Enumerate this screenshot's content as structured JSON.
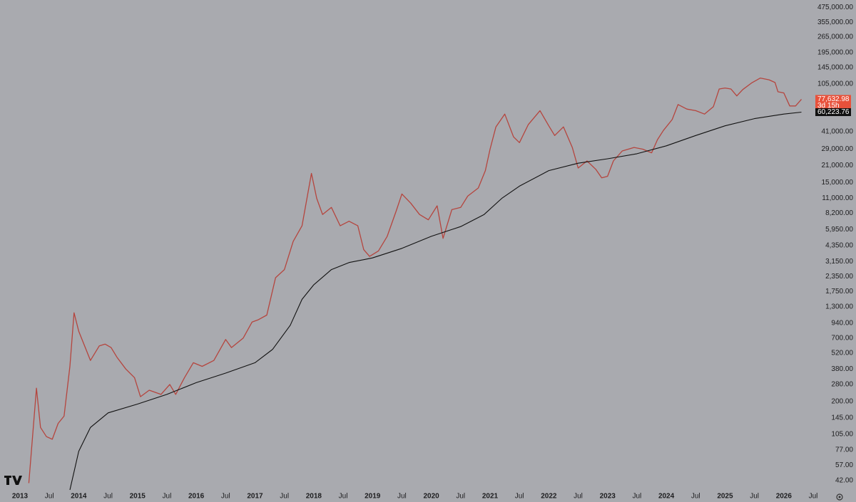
{
  "chart_data": {
    "type": "line",
    "log_y": true,
    "grid": false,
    "xlim": [
      2012.66,
      2026.5
    ],
    "xticks": [
      2013,
      {
        "value": 2013.5,
        "label": "Jul"
      },
      2014,
      {
        "value": 2014.5,
        "label": "Jul"
      },
      2015,
      {
        "value": 2015.5,
        "label": "Jul"
      },
      2016,
      {
        "value": 2016.5,
        "label": "Jul"
      },
      2017,
      {
        "value": 2017.5,
        "label": "Jul"
      },
      2018,
      {
        "value": 2018.5,
        "label": "Jul"
      },
      2019,
      {
        "value": 2019.5,
        "label": "Jul"
      },
      2020,
      {
        "value": 2020.5,
        "label": "Jul"
      },
      2021,
      {
        "value": 2021.5,
        "label": "Jul"
      },
      2022,
      {
        "value": 2022.5,
        "label": "Jul"
      },
      2023,
      {
        "value": 2023.5,
        "label": "Jul"
      },
      2024,
      {
        "value": 2024.5,
        "label": "Jul"
      },
      2025,
      {
        "value": 2025.5,
        "label": "Jul"
      },
      2026,
      {
        "value": 2026.5,
        "label": "Jul"
      }
    ],
    "ylim": [
      35,
      550000
    ],
    "yticks": [
      {
        "value": 475000,
        "label": "475,000.00"
      },
      {
        "value": 355000,
        "label": "355,000.00"
      },
      {
        "value": 265000,
        "label": "265,000.00"
      },
      {
        "value": 195000,
        "label": "195,000.00"
      },
      {
        "value": 145000,
        "label": "145,000.00"
      },
      {
        "value": 105000,
        "label": "105,000.00"
      },
      {
        "value": 41000,
        "label": "41,000.00"
      },
      {
        "value": 29000,
        "label": "29,000.00"
      },
      {
        "value": 21000,
        "label": "21,000.00"
      },
      {
        "value": 15000,
        "label": "15,000.00"
      },
      {
        "value": 11000,
        "label": "11,000.00"
      },
      {
        "value": 8200,
        "label": "8,200.00"
      },
      {
        "value": 5950,
        "label": "5,950.00"
      },
      {
        "value": 4350,
        "label": "4,350.00"
      },
      {
        "value": 3150,
        "label": "3,150.00"
      },
      {
        "value": 2350,
        "label": "2,350.00"
      },
      {
        "value": 1750,
        "label": "1,750.00"
      },
      {
        "value": 1300,
        "label": "1,300.00"
      },
      {
        "value": 940,
        "label": "940.00"
      },
      {
        "value": 700,
        "label": "700.00"
      },
      {
        "value": 520,
        "label": "520.00"
      },
      {
        "value": 380,
        "label": "380.00"
      },
      {
        "value": 280,
        "label": "280.00"
      },
      {
        "value": 200,
        "label": "200.00"
      },
      {
        "value": 145,
        "label": "145.00"
      },
      {
        "value": 105,
        "label": "105.00"
      },
      {
        "value": 77,
        "label": "77.00"
      },
      {
        "value": 57,
        "label": "57.00"
      },
      {
        "value": 42,
        "label": "42.00"
      }
    ],
    "series": [
      {
        "color": "#b5453e",
        "x": [
          2013.15,
          2013.28,
          2013.35,
          2013.45,
          2013.55,
          2013.65,
          2013.75,
          2013.85,
          2013.92,
          2014.0,
          2014.1,
          2014.2,
          2014.35,
          2014.45,
          2014.55,
          2014.65,
          2014.8,
          2014.95,
          2015.05,
          2015.2,
          2015.4,
          2015.55,
          2015.65,
          2015.8,
          2015.95,
          2016.1,
          2016.3,
          2016.5,
          2016.6,
          2016.8,
          2016.95,
          2017.05,
          2017.2,
          2017.35,
          2017.5,
          2017.65,
          2017.8,
          2017.96,
          2018.05,
          2018.15,
          2018.3,
          2018.45,
          2018.6,
          2018.75,
          2018.85,
          2018.95,
          2019.1,
          2019.25,
          2019.4,
          2019.5,
          2019.65,
          2019.8,
          2019.95,
          2020.1,
          2020.2,
          2020.35,
          2020.5,
          2020.62,
          2020.8,
          2020.92,
          2021.0,
          2021.1,
          2021.25,
          2021.4,
          2021.5,
          2021.65,
          2021.85,
          2022.0,
          2022.1,
          2022.25,
          2022.4,
          2022.5,
          2022.65,
          2022.8,
          2022.9,
          2023.0,
          2023.1,
          2023.25,
          2023.45,
          2023.6,
          2023.75,
          2023.85,
          2023.95,
          2024.1,
          2024.2,
          2024.35,
          2024.5,
          2024.65,
          2024.8,
          2024.9,
          2025.0,
          2025.1,
          2025.2,
          2025.3,
          2025.45,
          2025.6,
          2025.75,
          2025.85,
          2025.9,
          2026.0,
          2026.1,
          2026.2,
          2026.3
        ],
        "values": [
          40,
          260,
          120,
          100,
          95,
          130,
          150,
          400,
          1150,
          800,
          600,
          450,
          600,
          620,
          580,
          480,
          380,
          320,
          220,
          250,
          230,
          280,
          230,
          320,
          430,
          400,
          450,
          680,
          580,
          700,
          960,
          1000,
          1100,
          2300,
          2700,
          4700,
          6400,
          18000,
          11000,
          8000,
          9200,
          6400,
          7000,
          6400,
          4000,
          3500,
          3900,
          5200,
          8500,
          12000,
          10000,
          8000,
          7200,
          9500,
          5000,
          8800,
          9200,
          11500,
          13500,
          19000,
          29000,
          45000,
          58000,
          37000,
          33000,
          47000,
          62000,
          46000,
          38000,
          45000,
          30000,
          20000,
          23000,
          19500,
          16500,
          17000,
          23000,
          28000,
          30000,
          29000,
          27000,
          35000,
          42000,
          52000,
          70000,
          64000,
          62000,
          58000,
          67000,
          95000,
          97000,
          95000,
          83000,
          94000,
          107000,
          118000,
          114000,
          108000,
          90000,
          88000,
          68000,
          68000,
          77632.98
        ]
      },
      {
        "color": "#111111",
        "x": [
          2013.85,
          2014.0,
          2014.2,
          2014.5,
          2015.0,
          2015.5,
          2016.0,
          2016.5,
          2017.0,
          2017.3,
          2017.6,
          2017.8,
          2018.0,
          2018.3,
          2018.6,
          2019.0,
          2019.5,
          2020.0,
          2020.5,
          2020.9,
          2021.2,
          2021.5,
          2022.0,
          2022.5,
          2023.0,
          2023.5,
          2024.0,
          2024.5,
          2025.0,
          2025.5,
          2026.0,
          2026.3
        ],
        "values": [
          35,
          75,
          120,
          160,
          190,
          230,
          290,
          350,
          430,
          560,
          900,
          1500,
          2000,
          2700,
          3100,
          3400,
          4100,
          5200,
          6300,
          8000,
          11000,
          14000,
          19000,
          22000,
          24000,
          26500,
          31000,
          38000,
          46000,
          53000,
          58000,
          60223.76
        ]
      }
    ],
    "price_label": {
      "value": 77632.98,
      "label": "77,632.98",
      "countdown": "3d 15h",
      "color": "#e8513b"
    },
    "ma_label": {
      "value": 60223.76,
      "label": "60,223.76",
      "color": "#111111"
    }
  }
}
